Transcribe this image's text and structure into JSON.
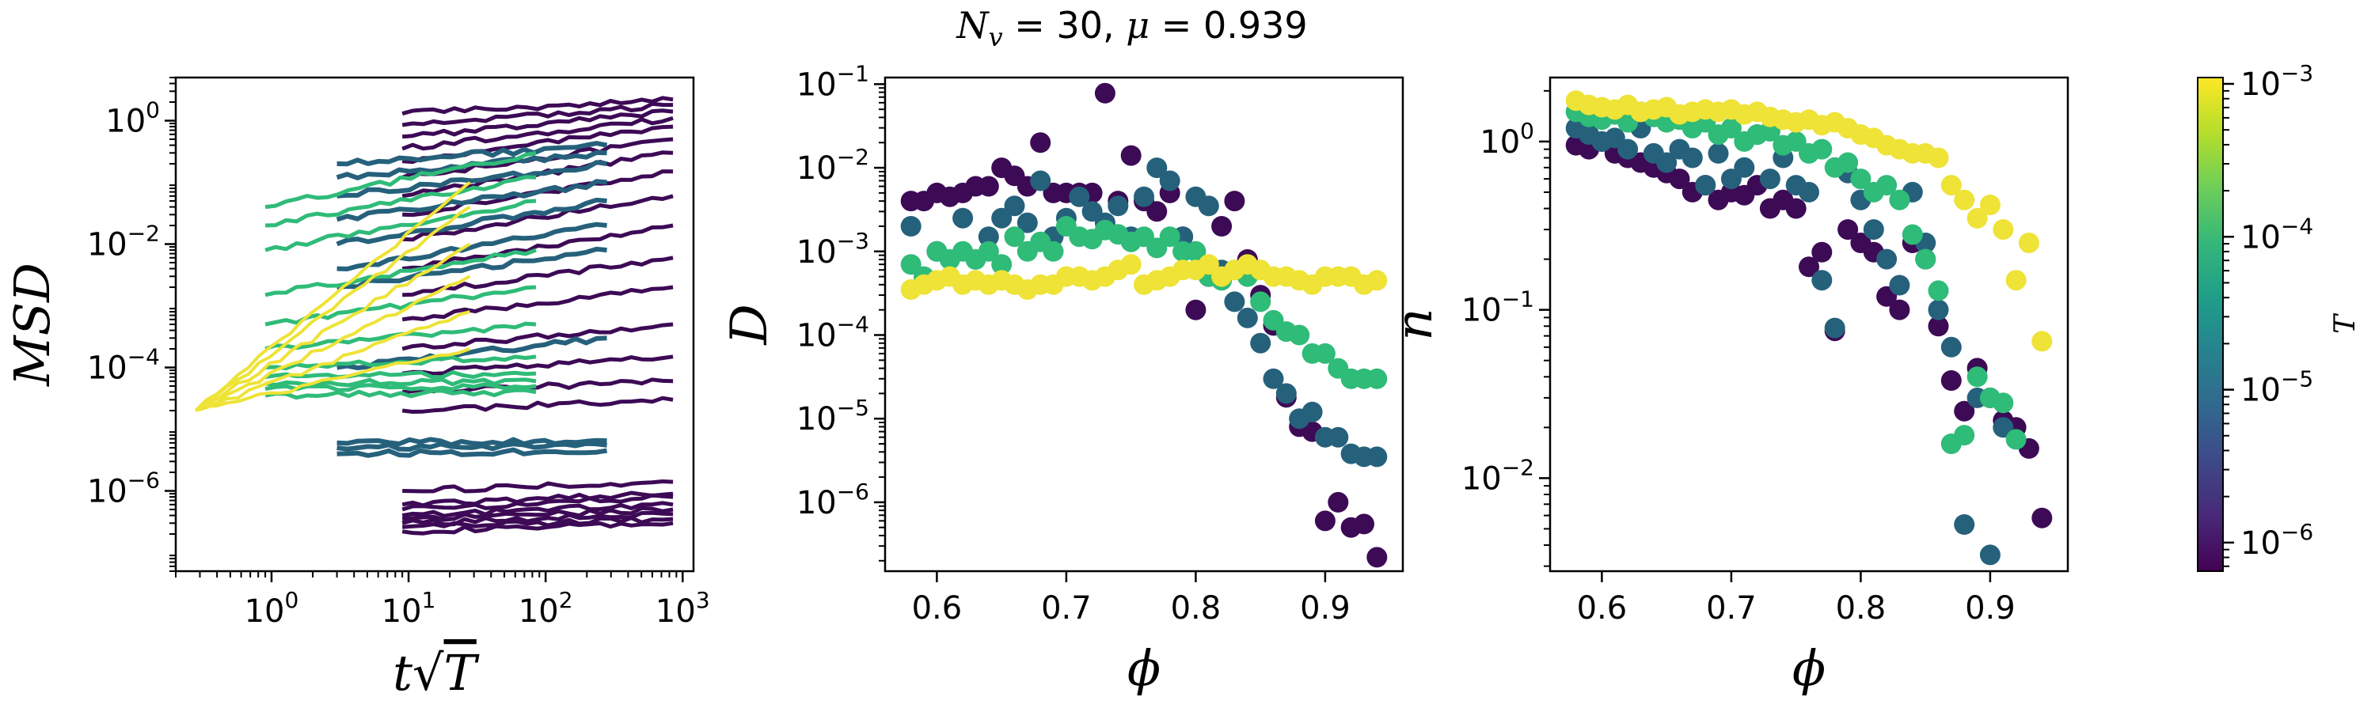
{
  "figure_title": "N_v = 30, μ = 0.939",
  "title_parts": {
    "n": "N",
    "v": "v",
    "rest": " = 30, ",
    "mu": "μ",
    "val": " = 0.939"
  },
  "colormap": {
    "name": "viridis",
    "label": "T",
    "range": [
      6.5e-07,
      0.0011
    ],
    "scale": "log",
    "ticks": [
      1e-06,
      1e-05,
      0.0001,
      0.001
    ],
    "tick_labels": [
      {
        "b": "10",
        "e": "−6"
      },
      {
        "b": "10",
        "e": "−5"
      },
      {
        "b": "10",
        "e": "−4"
      },
      {
        "b": "10",
        "e": "−3"
      }
    ]
  },
  "level_colors": [
    "#3d0a56",
    "#26617c",
    "#2fbb78",
    "#eee336"
  ],
  "chart_data": [
    {
      "id": "msd",
      "type": "line",
      "xlabel": "t√T",
      "xlabel_parts": {
        "t": "t",
        "sqrt": "√",
        "T": "T"
      },
      "ylabel": "MSD",
      "xscale": "log",
      "yscale": "log",
      "xlim": [
        0.2,
        1200
      ],
      "ylim": [
        5e-08,
        5
      ],
      "xticks": [
        1,
        10,
        100,
        1000
      ],
      "xtick_labels": [
        {
          "b": "10",
          "e": "0"
        },
        {
          "b": "10",
          "e": "1"
        },
        {
          "b": "10",
          "e": "2"
        },
        {
          "b": "10",
          "e": "3"
        }
      ],
      "yticks": [
        1e-06,
        0.0001,
        0.01,
        1
      ],
      "ytick_labels": [
        {
          "b": "10",
          "e": "−6"
        },
        {
          "b": "10",
          "e": "−4"
        },
        {
          "b": "10",
          "e": "−2"
        },
        {
          "b": "10",
          "e": "0"
        }
      ],
      "groups": [
        {
          "level": 0,
          "x_range": [
            9,
            850
          ],
          "start_values": [
            2.2e-07,
            2.6e-07,
            3e-07,
            3.5e-07,
            4e-07,
            5e-07,
            6e-07,
            1e-06,
            2e-05,
            4e-05,
            8e-05,
            0.0002,
            0.0006,
            0.0015,
            0.004,
            0.012,
            0.03,
            0.06,
            0.12,
            0.22,
            0.35,
            0.55,
            0.85,
            1.3
          ],
          "end_values": [
            3e-07,
            3.5e-07,
            4.2e-07,
            5e-07,
            6e-07,
            8e-07,
            9e-07,
            1.4e-06,
            3e-05,
            6e-05,
            0.00015,
            0.0005,
            0.002,
            0.006,
            0.02,
            0.06,
            0.15,
            0.3,
            0.5,
            0.8,
            1.1,
            1.4,
            1.8,
            2.2
          ]
        },
        {
          "level": 1,
          "x_range": [
            3,
            280
          ],
          "start_values": [
            4e-06,
            5e-06,
            6e-06,
            0.0001,
            0.002,
            0.004,
            0.01,
            0.025,
            0.06,
            0.12,
            0.2
          ],
          "end_values": [
            4.5e-06,
            5.5e-06,
            6.5e-06,
            0.0003,
            0.008,
            0.02,
            0.05,
            0.1,
            0.2,
            0.3,
            0.4
          ]
        },
        {
          "level": 2,
          "x_range": [
            0.9,
            85
          ],
          "start_values": [
            3.5e-05,
            4.5e-05,
            5.5e-05,
            7e-05,
            0.0001,
            0.0002,
            0.0005,
            0.0015,
            0.008,
            0.02,
            0.04
          ],
          "end_values": [
            4e-05,
            5e-05,
            6e-05,
            8e-05,
            0.00015,
            0.0005,
            0.002,
            0.008,
            0.05,
            0.12,
            0.3
          ]
        },
        {
          "level": 3,
          "x_range": [
            0.28,
            28
          ],
          "start_values": [
            2e-05,
            2e-05,
            2e-05,
            2e-05,
            2e-05,
            2e-05
          ],
          "end_values": [
            0.0002,
            0.0008,
            0.003,
            0.01,
            0.04,
            0.1
          ]
        }
      ]
    },
    {
      "id": "D",
      "type": "scatter",
      "xlabel": "ϕ",
      "ylabel": "D",
      "xscale": "linear",
      "yscale": "log",
      "xlim": [
        0.56,
        0.96
      ],
      "ylim": [
        1.5e-07,
        0.12
      ],
      "xticks": [
        0.6,
        0.7,
        0.8,
        0.9
      ],
      "xtick_labels": [
        "0.6",
        "0.7",
        "0.8",
        "0.9"
      ],
      "yticks": [
        1e-06,
        1e-05,
        0.0001,
        0.001,
        0.01,
        0.1
      ],
      "ytick_labels": [
        {
          "b": "10",
          "e": "−6"
        },
        {
          "b": "10",
          "e": "−5"
        },
        {
          "b": "10",
          "e": "−4"
        },
        {
          "b": "10",
          "e": "−3"
        },
        {
          "b": "10",
          "e": "−2"
        },
        {
          "b": "10",
          "e": "−1"
        }
      ],
      "series": [
        {
          "level": 0,
          "x": [
            0.58,
            0.59,
            0.6,
            0.61,
            0.62,
            0.63,
            0.64,
            0.65,
            0.66,
            0.67,
            0.68,
            0.69,
            0.7,
            0.71,
            0.72,
            0.73,
            0.74,
            0.75,
            0.76,
            0.77,
            0.78,
            0.79,
            0.8,
            0.81,
            0.82,
            0.83,
            0.84,
            0.85,
            0.86,
            0.87,
            0.88,
            0.89,
            0.9,
            0.91,
            0.92,
            0.93,
            0.94
          ],
          "y": [
            0.004,
            0.004,
            0.005,
            0.0045,
            0.005,
            0.006,
            0.006,
            0.01,
            0.008,
            0.006,
            0.02,
            0.005,
            0.005,
            0.005,
            0.005,
            0.078,
            0.004,
            0.014,
            0.004,
            0.003,
            0.005,
            0.0015,
            0.0002,
            0.0005,
            0.002,
            0.004,
            0.0008,
            0.0003,
            0.00013,
            1.8e-05,
            8e-06,
            7e-06,
            6e-07,
            1e-06,
            5e-07,
            5.5e-07,
            2.2e-07
          ]
        },
        {
          "level": 1,
          "x": [
            0.58,
            0.6,
            0.62,
            0.64,
            0.65,
            0.66,
            0.67,
            0.68,
            0.69,
            0.7,
            0.71,
            0.72,
            0.73,
            0.74,
            0.75,
            0.76,
            0.77,
            0.78,
            0.79,
            0.8,
            0.81,
            0.82,
            0.83,
            0.84,
            0.85,
            0.86,
            0.87,
            0.88,
            0.89,
            0.9,
            0.91,
            0.92,
            0.93,
            0.94
          ],
          "y": [
            0.002,
            0.001,
            0.0025,
            0.0015,
            0.0025,
            0.0035,
            0.0022,
            0.007,
            0.0015,
            0.0025,
            0.0045,
            0.003,
            0.0022,
            0.0035,
            0.0015,
            0.0045,
            0.01,
            0.007,
            0.0015,
            0.0045,
            0.0035,
            0.0006,
            0.00025,
            0.00016,
            8e-05,
            3e-05,
            2e-05,
            1e-05,
            1.2e-05,
            6e-06,
            6e-06,
            3.8e-06,
            3.5e-06,
            3.5e-06
          ]
        },
        {
          "level": 2,
          "x": [
            0.58,
            0.59,
            0.6,
            0.61,
            0.62,
            0.63,
            0.64,
            0.65,
            0.66,
            0.67,
            0.68,
            0.69,
            0.7,
            0.71,
            0.72,
            0.73,
            0.74,
            0.75,
            0.76,
            0.77,
            0.78,
            0.79,
            0.8,
            0.81,
            0.82,
            0.83,
            0.84,
            0.85,
            0.86,
            0.87,
            0.88,
            0.89,
            0.9,
            0.91,
            0.92,
            0.93,
            0.94
          ],
          "y": [
            0.0007,
            0.0005,
            0.001,
            0.0008,
            0.001,
            0.0008,
            0.001,
            0.0007,
            0.0015,
            0.001,
            0.0013,
            0.001,
            0.002,
            0.0015,
            0.0014,
            0.0018,
            0.0016,
            0.0013,
            0.0015,
            0.0011,
            0.0015,
            0.001,
            0.001,
            0.0005,
            0.00045,
            0.0006,
            0.0005,
            0.00025,
            0.00015,
            0.00011,
            0.0001,
            6e-05,
            6e-05,
            4e-05,
            3e-05,
            3e-05,
            3e-05
          ]
        },
        {
          "level": 3,
          "x": [
            0.58,
            0.59,
            0.6,
            0.61,
            0.62,
            0.63,
            0.64,
            0.65,
            0.66,
            0.67,
            0.68,
            0.69,
            0.7,
            0.71,
            0.72,
            0.73,
            0.74,
            0.75,
            0.76,
            0.77,
            0.78,
            0.79,
            0.8,
            0.81,
            0.82,
            0.83,
            0.84,
            0.85,
            0.86,
            0.87,
            0.88,
            0.89,
            0.9,
            0.91,
            0.92,
            0.93,
            0.94
          ],
          "y": [
            0.00035,
            0.0004,
            0.00045,
            0.0005,
            0.0004,
            0.00045,
            0.0004,
            0.00045,
            0.0004,
            0.00035,
            0.0004,
            0.0004,
            0.0005,
            0.0005,
            0.00045,
            0.0005,
            0.0006,
            0.0007,
            0.0004,
            0.00045,
            0.0005,
            0.0006,
            0.0006,
            0.0007,
            0.0005,
            0.0006,
            0.0007,
            0.0006,
            0.0005,
            0.0005,
            0.00045,
            0.0004,
            0.0005,
            0.0005,
            0.0005,
            0.0004,
            0.00045
          ]
        }
      ]
    },
    {
      "id": "n",
      "type": "scatter",
      "xlabel": "ϕ",
      "ylabel": "n",
      "xscale": "linear",
      "yscale": "log",
      "xlim": [
        0.56,
        0.96
      ],
      "ylim": [
        0.0028,
        2.4
      ],
      "xticks": [
        0.6,
        0.7,
        0.8,
        0.9
      ],
      "xtick_labels": [
        "0.6",
        "0.7",
        "0.8",
        "0.9"
      ],
      "yticks": [
        0.01,
        0.1,
        1
      ],
      "ytick_labels": [
        {
          "b": "10",
          "e": "−2"
        },
        {
          "b": "10",
          "e": "−1"
        },
        {
          "b": "10",
          "e": "0"
        }
      ],
      "series": [
        {
          "level": 0,
          "x": [
            0.58,
            0.59,
            0.6,
            0.61,
            0.62,
            0.63,
            0.64,
            0.65,
            0.66,
            0.67,
            0.68,
            0.69,
            0.7,
            0.71,
            0.72,
            0.73,
            0.74,
            0.75,
            0.76,
            0.77,
            0.78,
            0.79,
            0.8,
            0.81,
            0.82,
            0.83,
            0.84,
            0.85,
            0.86,
            0.87,
            0.88,
            0.89,
            0.9,
            0.91,
            0.92,
            0.93,
            0.94
          ],
          "y": [
            0.95,
            0.9,
            1.0,
            0.85,
            0.8,
            0.75,
            0.7,
            0.65,
            0.6,
            0.5,
            0.55,
            0.45,
            0.5,
            0.48,
            0.55,
            0.4,
            0.45,
            0.4,
            0.18,
            0.22,
            0.075,
            0.3,
            0.25,
            0.22,
            0.12,
            0.1,
            0.25,
            0.2,
            0.08,
            0.038,
            0.025,
            0.045,
            0.03,
            0.022,
            0.02,
            0.015,
            0.0058
          ]
        },
        {
          "level": 1,
          "x": [
            0.58,
            0.59,
            0.6,
            0.61,
            0.62,
            0.63,
            0.64,
            0.65,
            0.66,
            0.67,
            0.68,
            0.69,
            0.7,
            0.71,
            0.72,
            0.73,
            0.74,
            0.75,
            0.76,
            0.77,
            0.78,
            0.79,
            0.8,
            0.81,
            0.82,
            0.83,
            0.84,
            0.85,
            0.86,
            0.87,
            0.88,
            0.89,
            0.9,
            0.91
          ],
          "y": [
            1.2,
            1.1,
            1.0,
            1.05,
            0.9,
            1.2,
            0.85,
            0.75,
            0.9,
            0.8,
            0.55,
            0.85,
            0.6,
            0.7,
            1.1,
            0.6,
            0.8,
            0.55,
            0.5,
            0.15,
            0.078,
            0.65,
            0.45,
            0.3,
            0.2,
            0.14,
            0.5,
            0.25,
            0.1,
            0.06,
            0.0053,
            0.03,
            0.0035,
            0.02
          ]
        },
        {
          "level": 2,
          "x": [
            0.58,
            0.59,
            0.6,
            0.61,
            0.62,
            0.63,
            0.64,
            0.65,
            0.66,
            0.67,
            0.68,
            0.69,
            0.7,
            0.71,
            0.72,
            0.73,
            0.74,
            0.75,
            0.76,
            0.77,
            0.78,
            0.79,
            0.8,
            0.81,
            0.82,
            0.83,
            0.84,
            0.85,
            0.86,
            0.87,
            0.88,
            0.89,
            0.9,
            0.91,
            0.92
          ],
          "y": [
            1.5,
            1.4,
            1.35,
            1.45,
            1.3,
            1.5,
            1.4,
            1.3,
            1.35,
            1.2,
            1.3,
            1.1,
            1.2,
            1.0,
            1.1,
            1.15,
            0.95,
            1.0,
            0.85,
            0.9,
            0.7,
            0.75,
            0.6,
            0.5,
            0.55,
            0.45,
            0.28,
            0.2,
            0.13,
            0.016,
            0.018,
            0.04,
            0.03,
            0.028,
            0.017
          ]
        },
        {
          "level": 3,
          "x": [
            0.58,
            0.59,
            0.6,
            0.61,
            0.62,
            0.63,
            0.64,
            0.65,
            0.66,
            0.67,
            0.68,
            0.69,
            0.7,
            0.71,
            0.72,
            0.73,
            0.74,
            0.75,
            0.76,
            0.77,
            0.78,
            0.79,
            0.8,
            0.81,
            0.82,
            0.83,
            0.84,
            0.85,
            0.86,
            0.87,
            0.88,
            0.89,
            0.9,
            0.91,
            0.92,
            0.93,
            0.94
          ],
          "y": [
            1.75,
            1.65,
            1.6,
            1.55,
            1.65,
            1.5,
            1.55,
            1.6,
            1.45,
            1.5,
            1.55,
            1.5,
            1.55,
            1.45,
            1.5,
            1.4,
            1.35,
            1.3,
            1.35,
            1.25,
            1.3,
            1.2,
            1.1,
            1.05,
            0.95,
            0.9,
            0.85,
            0.85,
            0.8,
            0.55,
            0.45,
            0.35,
            0.42,
            0.3,
            0.15,
            0.25,
            0.065
          ]
        }
      ]
    }
  ]
}
